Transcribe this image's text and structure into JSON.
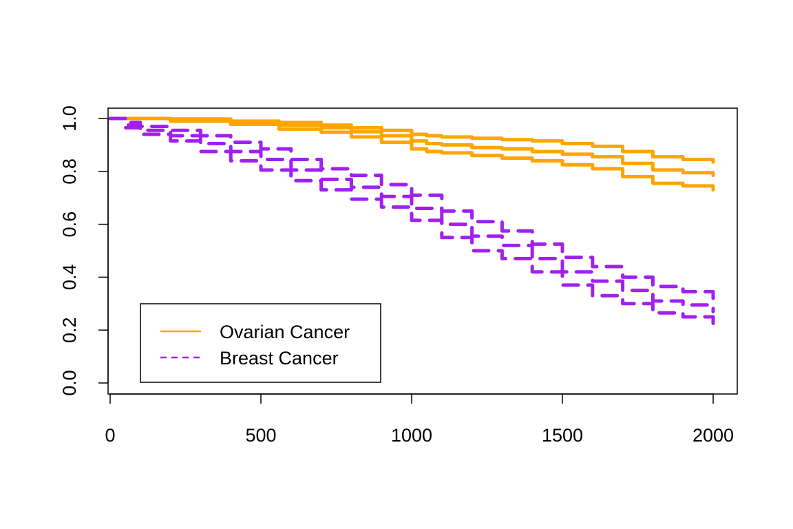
{
  "chart_data": {
    "type": "line",
    "title": "",
    "xlabel": "",
    "ylabel": "",
    "xlim": [
      0,
      2000
    ],
    "ylim": [
      0,
      1
    ],
    "x_ticks": [
      "0",
      "500",
      "1000",
      "1500",
      "2000"
    ],
    "y_ticks": [
      "0.0",
      "0.2",
      "0.4",
      "0.6",
      "0.8",
      "1.0"
    ],
    "grid": false,
    "legend_position": "bottom-left",
    "legend": [
      {
        "label": "Ovarian Cancer",
        "color": "#FFA500",
        "style": "solid"
      },
      {
        "label": "Breast Cancer",
        "color": "#A020F0",
        "style": "dashed"
      }
    ],
    "series": [
      {
        "group": 0,
        "band": "upper",
        "color": "#FFA500",
        "style": "solid",
        "x": [
          0,
          200,
          400,
          560,
          700,
          800,
          900,
          1000,
          1050,
          1100,
          1200,
          1300,
          1400,
          1500,
          1600,
          1700,
          1800,
          1900,
          2000
        ],
        "y": [
          1.0,
          0.998,
          0.99,
          0.985,
          0.975,
          0.965,
          0.955,
          0.94,
          0.935,
          0.93,
          0.925,
          0.92,
          0.915,
          0.905,
          0.895,
          0.875,
          0.855,
          0.845,
          0.835
        ]
      },
      {
        "group": 0,
        "band": "estimate",
        "color": "#FFA500",
        "style": "solid",
        "x": [
          0,
          200,
          400,
          560,
          700,
          800,
          900,
          1000,
          1050,
          1100,
          1200,
          1300,
          1400,
          1500,
          1600,
          1700,
          1800,
          1900,
          2000
        ],
        "y": [
          1.0,
          0.995,
          0.985,
          0.975,
          0.965,
          0.95,
          0.935,
          0.915,
          0.905,
          0.9,
          0.89,
          0.885,
          0.875,
          0.865,
          0.855,
          0.83,
          0.805,
          0.795,
          0.785
        ]
      },
      {
        "group": 0,
        "band": "lower",
        "color": "#FFA500",
        "style": "solid",
        "x": [
          0,
          200,
          400,
          560,
          700,
          800,
          900,
          1000,
          1050,
          1100,
          1200,
          1300,
          1400,
          1500,
          1600,
          1700,
          1800,
          1900,
          2000
        ],
        "y": [
          1.0,
          0.99,
          0.978,
          0.96,
          0.948,
          0.93,
          0.91,
          0.885,
          0.875,
          0.87,
          0.86,
          0.85,
          0.84,
          0.825,
          0.81,
          0.78,
          0.755,
          0.745,
          0.73
        ]
      },
      {
        "group": 1,
        "band": "upper",
        "color": "#A020F0",
        "style": "dashed",
        "x": [
          0,
          50,
          100,
          200,
          300,
          400,
          500,
          600,
          700,
          800,
          900,
          1000,
          1100,
          1200,
          1300,
          1400,
          1500,
          1600,
          1700,
          1800,
          1900,
          2000
        ],
        "y": [
          1.0,
          0.985,
          0.97,
          0.955,
          0.935,
          0.91,
          0.885,
          0.845,
          0.81,
          0.785,
          0.75,
          0.71,
          0.65,
          0.61,
          0.575,
          0.525,
          0.475,
          0.44,
          0.4,
          0.365,
          0.345,
          0.32
        ]
      },
      {
        "group": 1,
        "band": "estimate",
        "color": "#A020F0",
        "style": "dashed",
        "x": [
          0,
          50,
          100,
          200,
          300,
          400,
          500,
          600,
          700,
          800,
          900,
          1000,
          1100,
          1200,
          1300,
          1400,
          1500,
          1600,
          1700,
          1800,
          1900,
          2000
        ],
        "y": [
          1.0,
          0.975,
          0.955,
          0.935,
          0.905,
          0.875,
          0.845,
          0.805,
          0.77,
          0.74,
          0.705,
          0.66,
          0.6,
          0.555,
          0.52,
          0.47,
          0.42,
          0.385,
          0.35,
          0.31,
          0.295,
          0.27
        ]
      },
      {
        "group": 1,
        "band": "lower",
        "color": "#A020F0",
        "style": "dashed",
        "x": [
          0,
          50,
          100,
          200,
          300,
          400,
          500,
          600,
          700,
          800,
          900,
          1000,
          1100,
          1200,
          1300,
          1400,
          1500,
          1600,
          1700,
          1800,
          1900,
          2000
        ],
        "y": [
          1.0,
          0.965,
          0.94,
          0.915,
          0.875,
          0.84,
          0.805,
          0.765,
          0.73,
          0.695,
          0.665,
          0.615,
          0.55,
          0.5,
          0.47,
          0.42,
          0.37,
          0.33,
          0.3,
          0.265,
          0.25,
          0.225
        ]
      }
    ]
  }
}
